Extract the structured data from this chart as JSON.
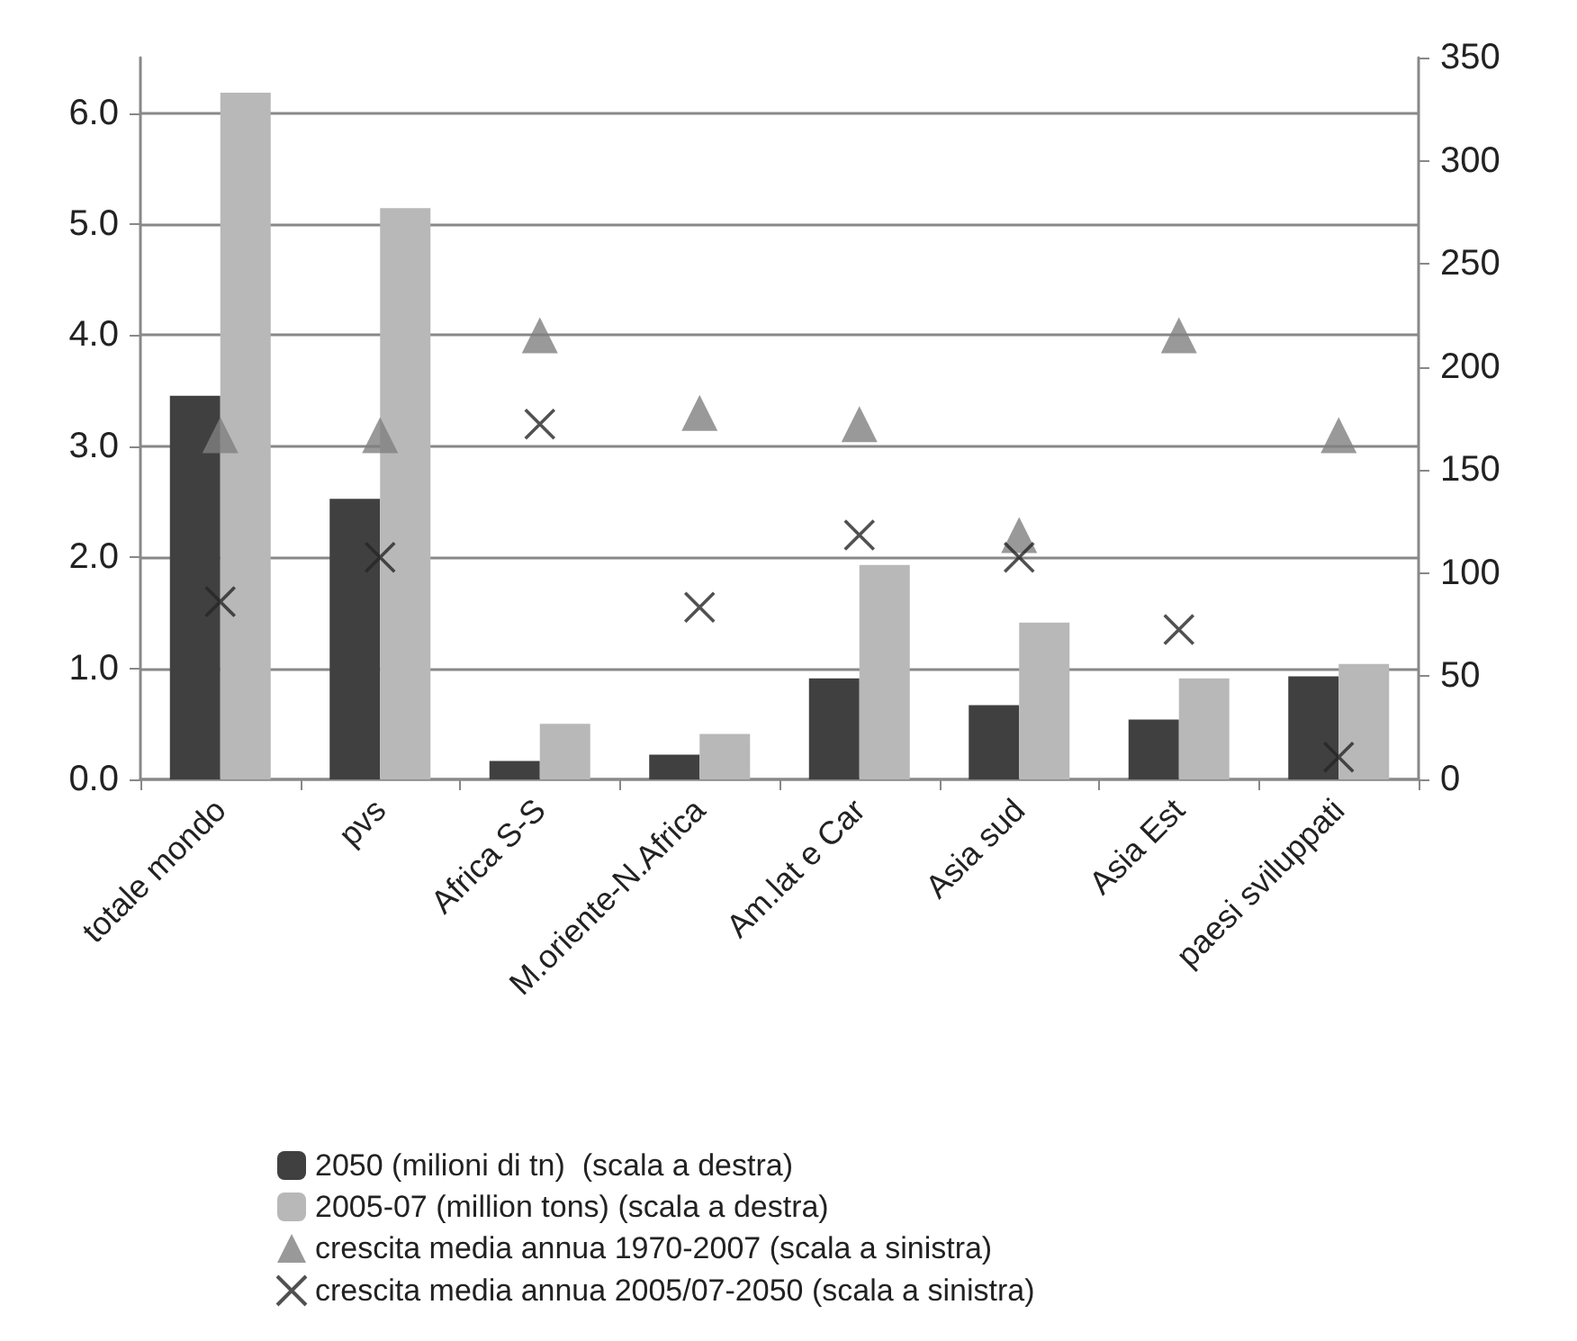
{
  "chart_data": {
    "type": "bar",
    "categories": [
      "totale mondo",
      "pvs",
      "Africa S-S",
      "M.oriente-N.Africa",
      "Am.lat e Car",
      "Asia sud",
      "Asia Est",
      "paesi sviluppati"
    ],
    "series": [
      {
        "name": "2050 (milioni di tn)  (scala a destra)",
        "axis": "y2",
        "color": "#404040",
        "values": [
          186,
          136,
          9,
          12,
          49,
          36,
          29,
          50
        ]
      },
      {
        "name": "2005-07 (million tons) (scala a destra)",
        "axis": "y2",
        "color": "#b8b8b8",
        "values": [
          333,
          277,
          27,
          22,
          104,
          76,
          49,
          56
        ]
      },
      {
        "name": "crescita media annua 1970-2007 (scala a sinistra)",
        "type": "scatter",
        "marker": "triangle",
        "color": "#7f7f7f",
        "values": [
          3.1,
          3.1,
          4.0,
          3.3,
          3.2,
          2.2,
          4.0,
          3.1
        ]
      },
      {
        "name": "crescita media annua 2005/07-2050 (scala a sinistra)",
        "type": "scatter",
        "marker": "cross",
        "color": "#262626",
        "values": [
          1.6,
          2.0,
          3.2,
          1.55,
          2.2,
          2.0,
          1.35,
          0.2
        ]
      }
    ],
    "ylim": [
      0,
      6.5
    ],
    "yticks": [
      {
        "value": 0,
        "label": "0.0"
      },
      {
        "value": 1,
        "label": "1.0"
      },
      {
        "value": 2,
        "label": "2.0"
      },
      {
        "value": 3,
        "label": "3.0"
      },
      {
        "value": 4,
        "label": "4.0"
      },
      {
        "value": 5,
        "label": "5.0"
      },
      {
        "value": 6,
        "label": "6.0"
      }
    ],
    "y2lim": [
      0,
      350
    ],
    "y2ticks": [
      0,
      50,
      100,
      150,
      200,
      250,
      300,
      350
    ],
    "grid": "y",
    "legend": "bottom"
  }
}
